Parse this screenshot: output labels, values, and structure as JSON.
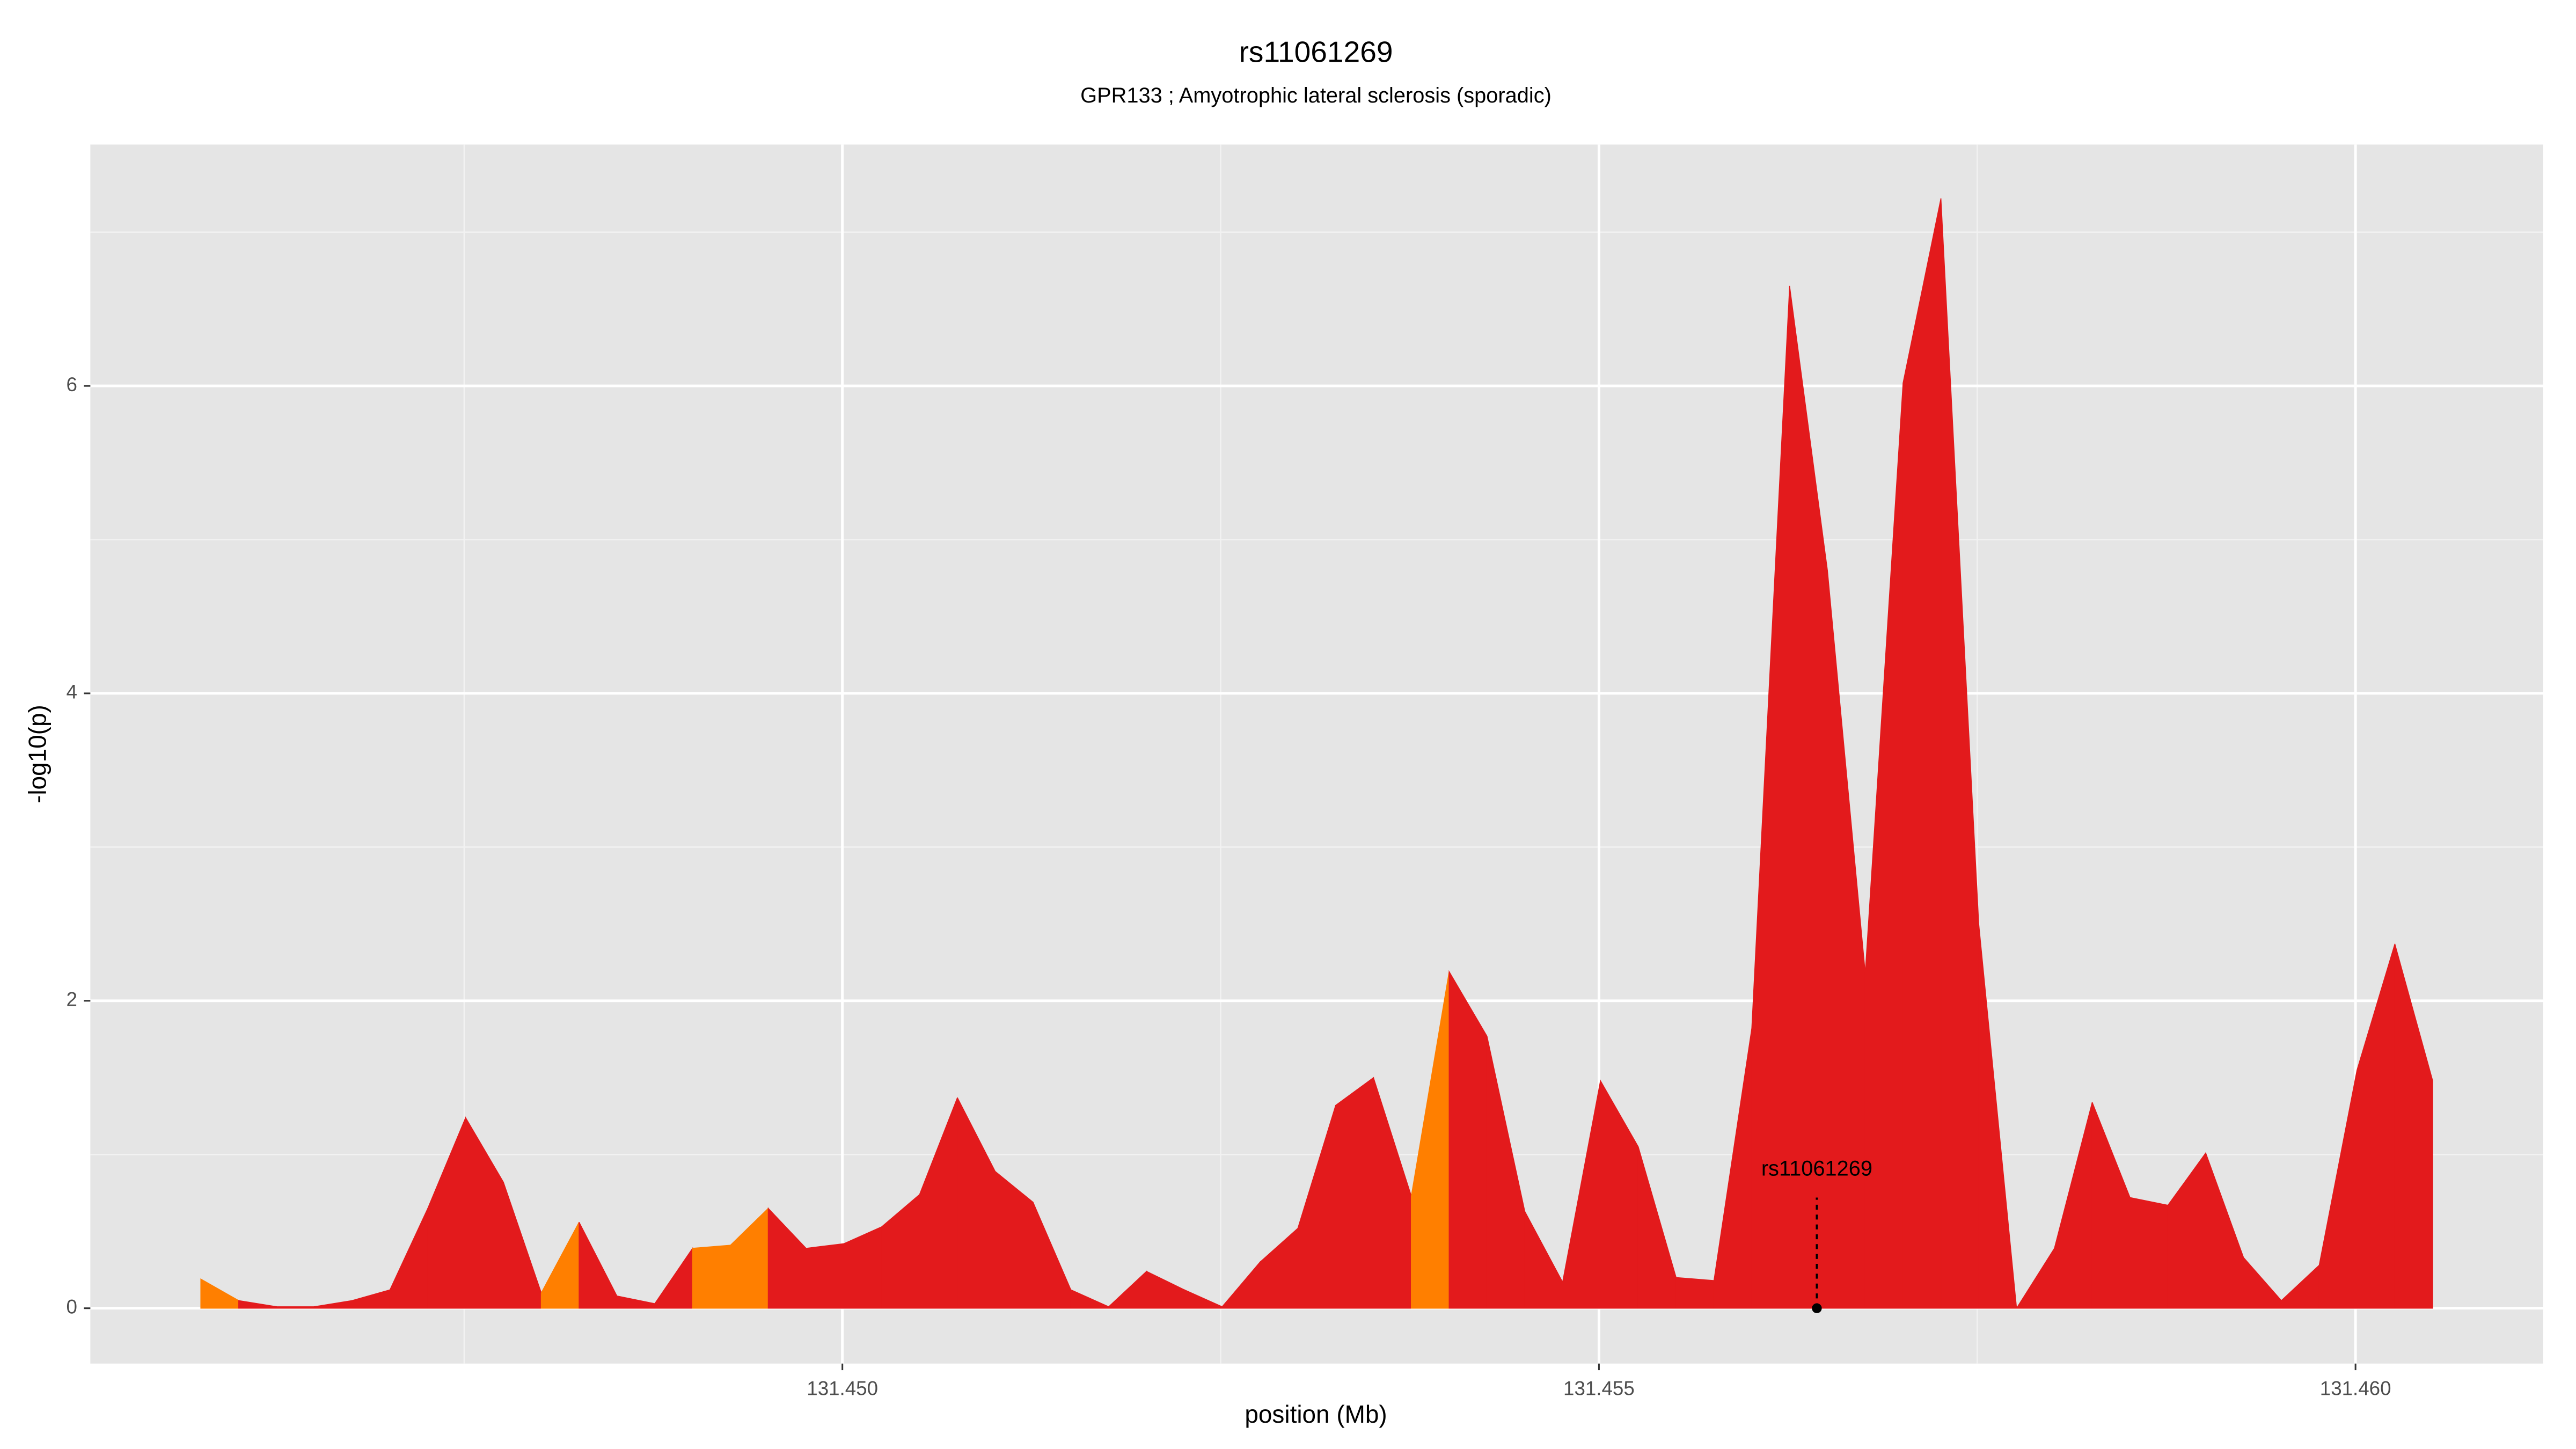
{
  "chart_data": {
    "type": "area",
    "title": "rs11061269",
    "subtitle": "GPR133 ; Amyotrophic lateral sclerosis (sporadic)",
    "xlabel": "position (Mb)",
    "ylabel": "-log10(p)",
    "x": [
      131.44576,
      131.44601,
      131.44626,
      131.44651,
      131.44676,
      131.44701,
      131.44726,
      131.44751,
      131.44776,
      131.44801,
      131.44826,
      131.44851,
      131.44876,
      131.44901,
      131.44926,
      131.44951,
      131.44976,
      131.45001,
      131.45026,
      131.45051,
      131.45076,
      131.45101,
      131.45126,
      131.45151,
      131.45176,
      131.45201,
      131.45226,
      131.45251,
      131.45276,
      131.45301,
      131.45326,
      131.45351,
      131.45376,
      131.45401,
      131.45426,
      131.45451,
      131.45476,
      131.45501,
      131.45526,
      131.45551,
      131.45576,
      131.45601,
      131.45626,
      131.45651,
      131.45676,
      131.45701,
      131.45726,
      131.45751,
      131.45776,
      131.45801,
      131.45826,
      131.45851,
      131.45876,
      131.45901,
      131.45926,
      131.45951,
      131.45976,
      131.46001,
      131.46026,
      131.46051
    ],
    "values": [
      0.19,
      0.05,
      0.01,
      0.01,
      0.05,
      0.12,
      0.65,
      1.24,
      0.82,
      0.1,
      0.56,
      0.08,
      0.03,
      0.39,
      0.41,
      0.65,
      0.39,
      0.42,
      0.53,
      0.74,
      1.37,
      0.89,
      0.69,
      0.12,
      0.01,
      0.24,
      0.12,
      0.01,
      0.3,
      0.52,
      1.32,
      1.5,
      0.73,
      2.19,
      1.77,
      0.63,
      0.17,
      1.48,
      1.05,
      0.2,
      0.18,
      1.82,
      6.65,
      4.8,
      2.18,
      6.02,
      7.22,
      2.5,
      0.0,
      0.39,
      1.34,
      0.72,
      0.67,
      1.01,
      0.33,
      0.05,
      0.28,
      1.55,
      2.37,
      1.48
    ],
    "segment_colors": [
      "#ff7f00",
      "#e31a1c",
      "#e31a1c",
      "#e31a1c",
      "#e31a1c",
      "#e31a1c",
      "#e31a1c",
      "#e31a1c",
      "#e31a1c",
      "#ff7f00",
      "#e31a1c",
      "#e31a1c",
      "#e31a1c",
      "#ff7f00",
      "#ff7f00",
      "#e31a1c",
      "#e31a1c",
      "#e31a1c",
      "#e31a1c",
      "#e31a1c",
      "#e31a1c",
      "#e31a1c",
      "#e31a1c",
      "#e31a1c",
      "#e31a1c",
      "#e31a1c",
      "#e31a1c",
      "#e31a1c",
      "#e31a1c",
      "#e31a1c",
      "#e31a1c",
      "#e31a1c",
      "#ff7f00",
      "#e31a1c",
      "#e31a1c",
      "#e31a1c",
      "#e31a1c",
      "#e31a1c",
      "#e31a1c",
      "#e31a1c",
      "#e31a1c",
      "#e31a1c",
      "#e31a1c",
      "#e31a1c",
      "#e31a1c",
      "#e31a1c",
      "#e31a1c",
      "#e31a1c",
      "#e31a1c",
      "#e31a1c",
      "#e31a1c",
      "#e31a1c",
      "#e31a1c",
      "#e31a1c",
      "#e31a1c",
      "#e31a1c",
      "#e31a1c",
      "#e31a1c",
      "#e31a1c"
    ],
    "annotation": {
      "text": "rs11061269",
      "x": 131.45644
    },
    "xlim": [
      131.44503,
      131.46124
    ],
    "ylim": [
      -0.36,
      7.57
    ],
    "xticks": [
      {
        "value": 131.45,
        "label": "131.450"
      },
      {
        "value": 131.455,
        "label": "131.455"
      },
      {
        "value": 131.46,
        "label": "131.460"
      }
    ],
    "yticks": [
      0,
      2,
      4,
      6
    ],
    "grid": true
  }
}
